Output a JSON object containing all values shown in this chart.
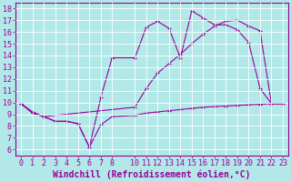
{
  "xlabel": "Windchill (Refroidissement éolien,°C)",
  "background_color": "#b2e8e8",
  "line_color": "#990099",
  "xlim": [
    -0.5,
    23.5
  ],
  "ylim": [
    5.5,
    18.5
  ],
  "xticks": [
    0,
    1,
    2,
    3,
    4,
    5,
    6,
    7,
    8,
    10,
    11,
    12,
    13,
    14,
    15,
    16,
    17,
    18,
    19,
    20,
    21,
    22,
    23
  ],
  "yticks": [
    6,
    7,
    8,
    9,
    10,
    11,
    12,
    13,
    14,
    15,
    16,
    17,
    18
  ],
  "line1_x": [
    0,
    1,
    2,
    3,
    4,
    5,
    6,
    7,
    8,
    10,
    11,
    12,
    13,
    14,
    15,
    16,
    17,
    18,
    19,
    20,
    21,
    22,
    23
  ],
  "line1_y": [
    9.9,
    9.1,
    8.8,
    8.4,
    8.4,
    8.2,
    6.2,
    8.1,
    8.8,
    8.9,
    9.1,
    9.2,
    9.3,
    9.4,
    9.5,
    9.6,
    9.65,
    9.7,
    9.75,
    9.8,
    9.85,
    9.9,
    9.9
  ],
  "line2_x": [
    0,
    1,
    2,
    3,
    4,
    5,
    6,
    7,
    8,
    10,
    11,
    12,
    13,
    14,
    15,
    16,
    17,
    18,
    19,
    20,
    21,
    22,
    23
  ],
  "line2_y": [
    9.9,
    9.1,
    8.8,
    8.4,
    8.4,
    8.2,
    6.2,
    10.4,
    13.8,
    13.8,
    16.4,
    16.9,
    16.3,
    13.8,
    17.8,
    17.2,
    16.6,
    16.6,
    16.2,
    15.1,
    11.2,
    9.9,
    9.9
  ],
  "line3_x": [
    0,
    1,
    2,
    10,
    11,
    12,
    13,
    14,
    15,
    16,
    17,
    18,
    19,
    20,
    21,
    22,
    23
  ],
  "line3_y": [
    9.9,
    9.2,
    8.8,
    9.6,
    11.2,
    12.5,
    13.3,
    14.1,
    15.0,
    15.8,
    16.5,
    16.9,
    17.0,
    16.5,
    16.1,
    9.9,
    9.9
  ],
  "grid_color": "#ffffff",
  "font_size": 6
}
